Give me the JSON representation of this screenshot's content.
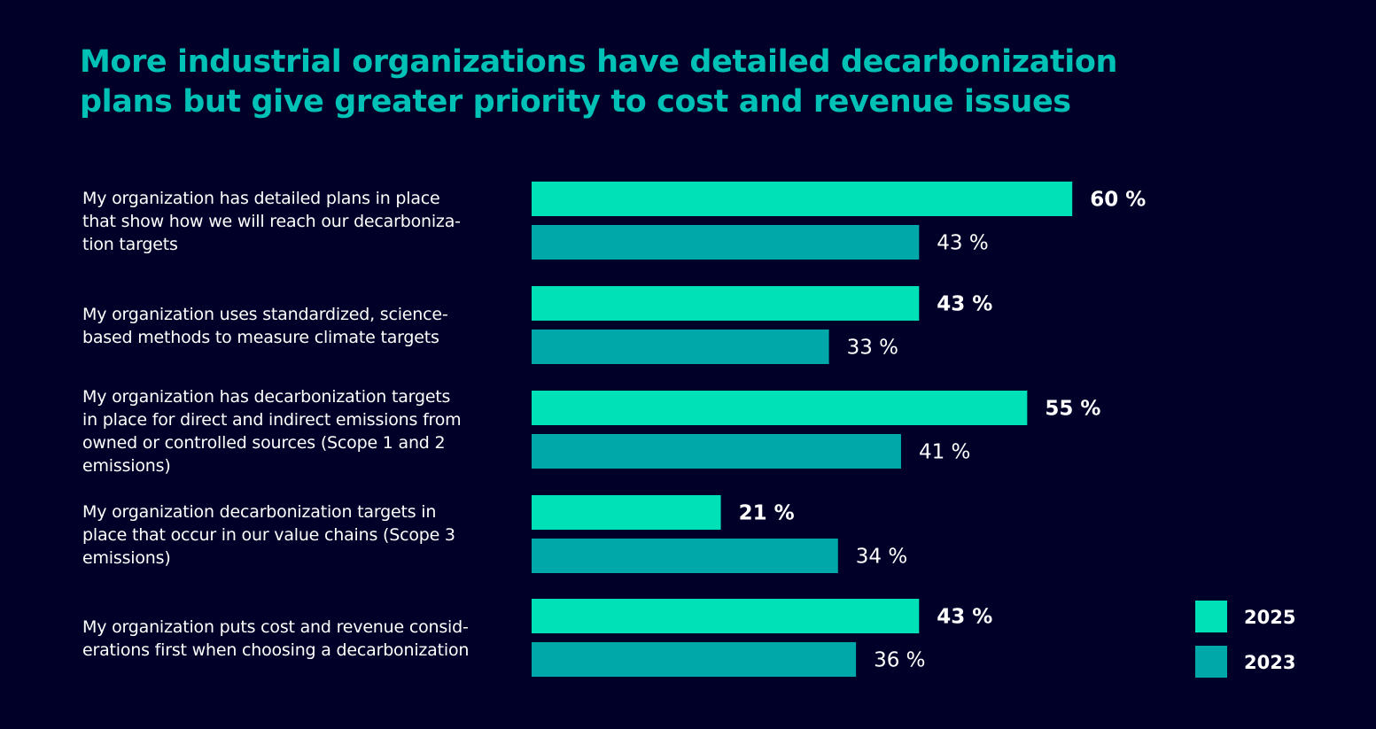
{
  "title_lines": [
    "More industrial organizations have detailed decarbonization",
    "plans but give greater priority to cost and revenue issues"
  ],
  "chart_data": {
    "type": "bar",
    "orientation": "horizontal",
    "title": "More industrial organizations have detailed decarbonization plans but give greater priority to cost and revenue issues",
    "categories": [
      "My organization has detailed plans in place that show how we will reach our decarboniza-tion targets",
      "My organization uses standardized, science-based methods to measure climate targets",
      "My organization has decarbonization targets in place for direct and indirect emissions from owned or controlled sources (Scope 1 and 2 emissions)",
      "My organization decarbonization targets in place that occur in our value chains (Scope 3 emissions)",
      "My organization puts cost and revenue consid-erations first when choosing a decarbonization"
    ],
    "category_lines": [
      [
        "My organization has detailed plans in place",
        "that show how we will reach our decarboniza-",
        "tion targets"
      ],
      [
        "My organization uses standardized, science-",
        "based methods to measure climate targets"
      ],
      [
        "My organization has decarbonization targets",
        "in place for direct and indirect emissions from",
        "owned or controlled sources (Scope 1 and 2",
        "emissions)"
      ],
      [
        "My organization decarbonization targets in",
        "place that occur in our value chains (Scope 3",
        "emissions)"
      ],
      [
        "My organization puts cost and revenue consid-",
        "erations first when choosing a decarbonization"
      ]
    ],
    "series": [
      {
        "name": "2025",
        "values": [
          60,
          43,
          55,
          21,
          43
        ],
        "labels": [
          "60 %",
          "43 %",
          "55 %",
          "21 %",
          "43 %"
        ],
        "color": "#00E1B7"
      },
      {
        "name": "2023",
        "values": [
          43,
          33,
          41,
          34,
          36
        ],
        "labels": [
          "43 %",
          "33 %",
          "41 %",
          "34 %",
          "36 %"
        ],
        "color": "#00A8A9"
      }
    ],
    "xlim": [
      0,
      100
    ],
    "grid": false,
    "legend_position": "bottom-right"
  }
}
